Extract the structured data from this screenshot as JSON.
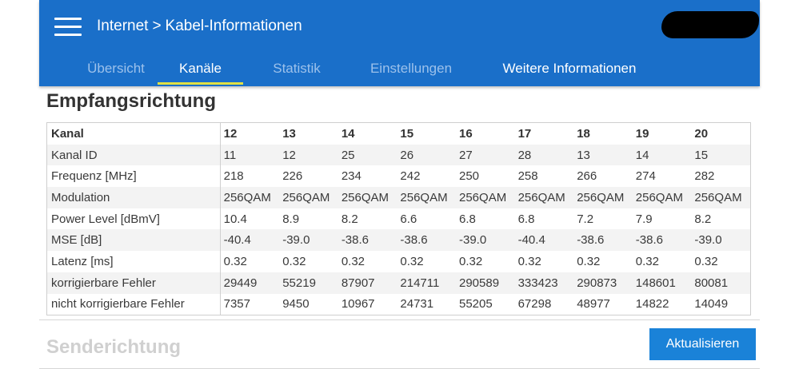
{
  "header": {
    "breadcrumb": {
      "section": "Internet",
      "separator": ">",
      "page": "Kabel-Informationen"
    },
    "icons": {
      "menu": "hamburger-menu-icon"
    },
    "colors": {
      "background": "#1a6fc9",
      "active_tab_underline": "#e0e043",
      "inactive_tab": "#9cc1eb"
    }
  },
  "tabs": [
    {
      "label": "Übersicht",
      "state": "inactive"
    },
    {
      "label": "Kanäle",
      "state": "active"
    },
    {
      "label": "Statistik",
      "state": "inactive"
    },
    {
      "label": "Einstellungen",
      "state": "inactive"
    },
    {
      "label": "Weitere Informationen",
      "state": "enabled"
    }
  ],
  "downstream": {
    "title": "Empfangsrichtung",
    "row_labels": [
      "Kanal",
      "Kanal ID",
      "Frequenz [MHz]",
      "Modulation",
      "Power Level [dBmV]",
      "MSE [dB]",
      "Latenz [ms]",
      "korrigierbare Fehler",
      "nicht korrigierbare Fehler"
    ],
    "rows": [
      [
        "12",
        "13",
        "14",
        "15",
        "16",
        "17",
        "18",
        "19",
        "20"
      ],
      [
        "11",
        "12",
        "25",
        "26",
        "27",
        "28",
        "13",
        "14",
        "15"
      ],
      [
        "218",
        "226",
        "234",
        "242",
        "250",
        "258",
        "266",
        "274",
        "282"
      ],
      [
        "256QAM",
        "256QAM",
        "256QAM",
        "256QAM",
        "256QAM",
        "256QAM",
        "256QAM",
        "256QAM",
        "256QAM"
      ],
      [
        "10.4",
        "8.9",
        "8.2",
        "6.6",
        "6.8",
        "6.8",
        "7.2",
        "7.9",
        "8.2"
      ],
      [
        "-40.4",
        "-39.0",
        "-38.6",
        "-38.6",
        "-39.0",
        "-40.4",
        "-38.6",
        "-38.6",
        "-39.0"
      ],
      [
        "0.32",
        "0.32",
        "0.32",
        "0.32",
        "0.32",
        "0.32",
        "0.32",
        "0.32",
        "0.32"
      ],
      [
        "29449",
        "55219",
        "87907",
        "214711",
        "290589",
        "333423",
        "290873",
        "148601",
        "80081"
      ],
      [
        "7357",
        "9450",
        "10967",
        "24731",
        "55205",
        "67298",
        "48977",
        "14822",
        "14049"
      ]
    ]
  },
  "upstream": {
    "title": "Senderichtung"
  },
  "actions": {
    "refresh_label": "Aktualisieren",
    "button_color": "#1a82d8"
  }
}
